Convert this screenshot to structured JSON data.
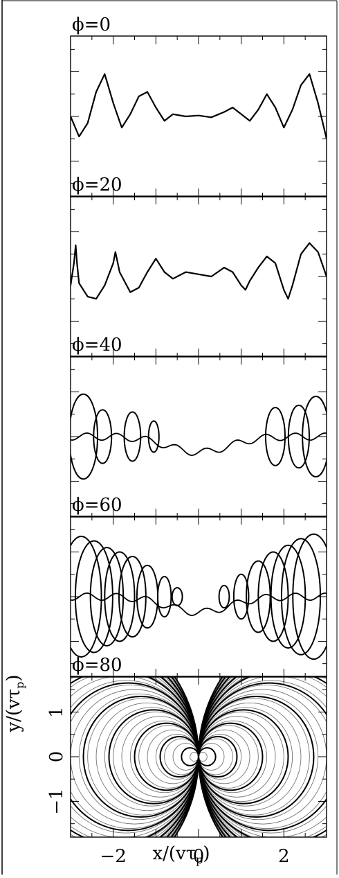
{
  "panels": [
    {
      "title": "ϕ=0"
    },
    {
      "title": "ϕ=20"
    },
    {
      "title": "ϕ=40"
    },
    {
      "title": "ϕ=60"
    },
    {
      "title": "ϕ=80"
    }
  ],
  "axes": {
    "xlabel_main": "x/(vτ",
    "xlabel_sub": "p",
    "xlabel_end": ")",
    "ylabel_main": "y/(vτ",
    "ylabel_sub": "p",
    "ylabel_end": ")"
  },
  "chart_data": [
    {
      "type": "line",
      "title": "ϕ=0",
      "xlim": [
        -3,
        3
      ],
      "ylim": [
        -1.8,
        1.8
      ],
      "series": [
        {
          "points": [
            [
              -3,
              0.0
            ],
            [
              -2.8,
              -0.45
            ],
            [
              -2.6,
              -0.15
            ],
            [
              -2.4,
              0.55
            ],
            [
              -2.2,
              0.95
            ],
            [
              -2.0,
              0.3
            ],
            [
              -1.8,
              -0.25
            ],
            [
              -1.6,
              0.05
            ],
            [
              -1.4,
              0.45
            ],
            [
              -1.2,
              0.55
            ],
            [
              -1.0,
              0.2
            ],
            [
              -0.8,
              -0.1
            ],
            [
              -0.6,
              0.05
            ],
            [
              -0.3,
              0.0
            ],
            [
              0.0,
              0.02
            ],
            [
              0.3,
              -0.02
            ],
            [
              0.6,
              0.1
            ],
            [
              0.8,
              0.2
            ],
            [
              1.0,
              0.05
            ],
            [
              1.2,
              -0.1
            ],
            [
              1.4,
              0.15
            ],
            [
              1.6,
              0.5
            ],
            [
              1.8,
              0.2
            ],
            [
              2.0,
              -0.25
            ],
            [
              2.2,
              0.15
            ],
            [
              2.4,
              0.7
            ],
            [
              2.6,
              0.95
            ],
            [
              2.8,
              0.3
            ],
            [
              3.0,
              -0.5
            ]
          ]
        }
      ]
    },
    {
      "type": "line",
      "title": "ϕ=20",
      "xlim": [
        -3,
        3
      ],
      "ylim": [
        -1.8,
        1.8
      ],
      "series": [
        {
          "points": [
            [
              -3,
              -0.2
            ],
            [
              -2.92,
              0.3
            ],
            [
              -2.88,
              0.7
            ],
            [
              -2.85,
              0.3
            ],
            [
              -2.8,
              -0.15
            ],
            [
              -2.6,
              -0.45
            ],
            [
              -2.4,
              -0.5
            ],
            [
              -2.2,
              -0.2
            ],
            [
              -2.0,
              0.3
            ],
            [
              -1.95,
              0.55
            ],
            [
              -1.85,
              0.1
            ],
            [
              -1.6,
              -0.35
            ],
            [
              -1.4,
              -0.25
            ],
            [
              -1.2,
              0.1
            ],
            [
              -1.0,
              0.4
            ],
            [
              -0.8,
              0.1
            ],
            [
              -0.6,
              -0.05
            ],
            [
              -0.3,
              0.1
            ],
            [
              0.0,
              0.05
            ],
            [
              0.3,
              0.0
            ],
            [
              0.6,
              0.2
            ],
            [
              0.8,
              0.1
            ],
            [
              1.0,
              -0.2
            ],
            [
              1.1,
              -0.3
            ],
            [
              1.2,
              -0.1
            ],
            [
              1.4,
              0.2
            ],
            [
              1.6,
              0.45
            ],
            [
              1.8,
              0.3
            ],
            [
              2.0,
              -0.3
            ],
            [
              2.1,
              -0.5
            ],
            [
              2.2,
              -0.2
            ],
            [
              2.4,
              0.5
            ],
            [
              2.6,
              0.75
            ],
            [
              2.8,
              0.55
            ],
            [
              3.0,
              0.0
            ]
          ]
        }
      ]
    },
    {
      "type": "line",
      "title": "ϕ=40",
      "xlim": [
        -3,
        3
      ],
      "ylim": [
        -1.8,
        1.8
      ],
      "series": [
        {
          "loop_centers_x": [
            -2.7,
            -2.25,
            -1.55,
            -1.05,
            1.8,
            2.35,
            2.75
          ],
          "loop_radii_y": [
            0.95,
            0.6,
            0.55,
            0.35,
            0.65,
            0.7,
            0.9
          ],
          "baseline_y": 0.0
        }
      ]
    },
    {
      "type": "line",
      "title": "ϕ=60",
      "xlim": [
        -3,
        3
      ],
      "ylim": [
        -1.8,
        1.8
      ],
      "series": [
        {
          "loop_centers_x": [
            -2.75,
            -2.45,
            -2.15,
            -1.85,
            -1.55,
            -1.2,
            -0.8,
            -0.5,
            0.6,
            1.0,
            1.4,
            1.75,
            2.1,
            2.4,
            2.7
          ],
          "loop_radii_y": [
            1.35,
            1.25,
            1.1,
            1.0,
            0.9,
            0.7,
            0.45,
            0.2,
            0.25,
            0.5,
            0.8,
            1.0,
            1.15,
            1.3,
            1.4
          ],
          "baseline_y": 0.0
        }
      ]
    },
    {
      "type": "line",
      "title": "ϕ=80",
      "xlabel": "x/(vτp)",
      "ylabel": "y/(vτp)",
      "xlim": [
        -3,
        3
      ],
      "ylim": [
        -1.8,
        1.8
      ],
      "xticks": [
        -2,
        0,
        2
      ],
      "yticks": [
        -1,
        0,
        1
      ],
      "series": [
        {
          "circle_radii_x": [
            0.2,
            0.45,
            0.75,
            1.05,
            1.35,
            1.65,
            1.95,
            2.25,
            2.55,
            2.85,
            3.15
          ],
          "tangent_at": [
            0,
            0
          ],
          "mirrored": true
        }
      ]
    }
  ]
}
